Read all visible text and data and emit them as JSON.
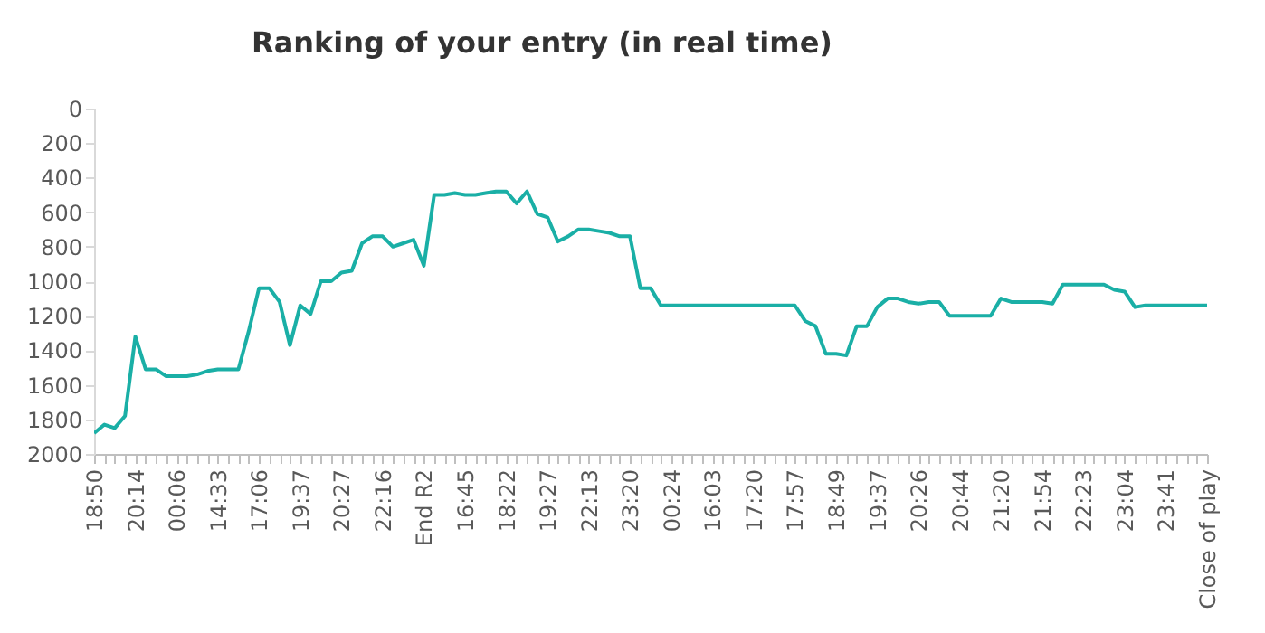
{
  "chart_data": {
    "type": "line",
    "title": "Ranking of your entry (in real time)",
    "categories": [
      "18:50",
      null,
      null,
      null,
      "20:14",
      null,
      null,
      null,
      "00:06",
      null,
      null,
      null,
      "14:33",
      null,
      null,
      null,
      "17:06",
      null,
      null,
      null,
      "19:37",
      null,
      null,
      null,
      "20:27",
      null,
      null,
      null,
      "22:16",
      null,
      null,
      null,
      "End R2",
      null,
      null,
      null,
      "16:45",
      null,
      null,
      null,
      "18:22",
      null,
      null,
      null,
      "19:27",
      null,
      null,
      null,
      "22:13",
      null,
      null,
      null,
      "23:20",
      null,
      null,
      null,
      "00:24",
      null,
      null,
      null,
      "16:03",
      null,
      null,
      null,
      "17:20",
      null,
      null,
      null,
      "17:57",
      null,
      null,
      null,
      "18:49",
      null,
      null,
      null,
      "19:37",
      null,
      null,
      null,
      "20:26",
      null,
      null,
      null,
      "20:44",
      null,
      null,
      null,
      "21:20",
      null,
      null,
      null,
      "21:54",
      null,
      null,
      null,
      "22:23",
      null,
      null,
      null,
      "23:04",
      null,
      null,
      null,
      "23:41",
      null,
      null,
      null,
      "Close of play"
    ],
    "series": [
      {
        "color": "#1aafa6",
        "values": [
          1880,
          1830,
          1850,
          1780,
          1320,
          1510,
          1510,
          1550,
          1550,
          1550,
          1540,
          1520,
          1510,
          1510,
          1510,
          1290,
          1040,
          1040,
          1120,
          1370,
          1140,
          1190,
          1000,
          1000,
          950,
          940,
          780,
          740,
          740,
          800,
          780,
          760,
          910,
          500,
          500,
          490,
          500,
          500,
          490,
          480,
          480,
          550,
          480,
          610,
          630,
          770,
          740,
          700,
          700,
          710,
          720,
          740,
          740,
          1040,
          1040,
          1140,
          1140,
          1140,
          1140,
          1140,
          1140,
          1140,
          1140,
          1140,
          1140,
          1140,
          1140,
          1140,
          1140,
          1230,
          1260,
          1420,
          1420,
          1430,
          1260,
          1260,
          1150,
          1100,
          1100,
          1120,
          1130,
          1120,
          1120,
          1200,
          1200,
          1200,
          1200,
          1200,
          1100,
          1120,
          1120,
          1120,
          1120,
          1130,
          1020,
          1020,
          1020,
          1020,
          1020,
          1050,
          1060,
          1150,
          1140,
          1140,
          1140,
          1140,
          1140,
          1140,
          1140
        ]
      }
    ],
    "ylim": [
      2000,
      0
    ],
    "yticks": [
      0,
      200,
      400,
      600,
      800,
      1000,
      1200,
      1400,
      1600,
      1800,
      2000
    ],
    "grid": false,
    "marker": "none",
    "line_style": "solid"
  }
}
